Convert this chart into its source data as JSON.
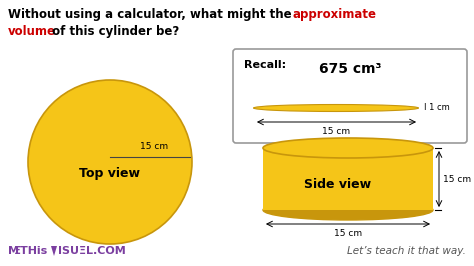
{
  "bg_color": "#ffffff",
  "cylinder_color": "#F5C518",
  "cylinder_dark": "#C8960C",
  "cylinder_edge": "#C8960C",
  "top_view_label": "Top view",
  "side_view_label": "Side view",
  "recall_text": "Recall:",
  "recall_volume": "675 cm³",
  "dim_15cm": "15 cm",
  "dim_1cm": "1 cm",
  "footer_right": "Let’s teach it that way.",
  "footer_color": "#7B3FA0",
  "title_line1_black": "Without using a calculator, what might the ",
  "title_line1_red": "approximate",
  "title_line2_red": "volume",
  "title_line2_black": " of this cylinder be?"
}
